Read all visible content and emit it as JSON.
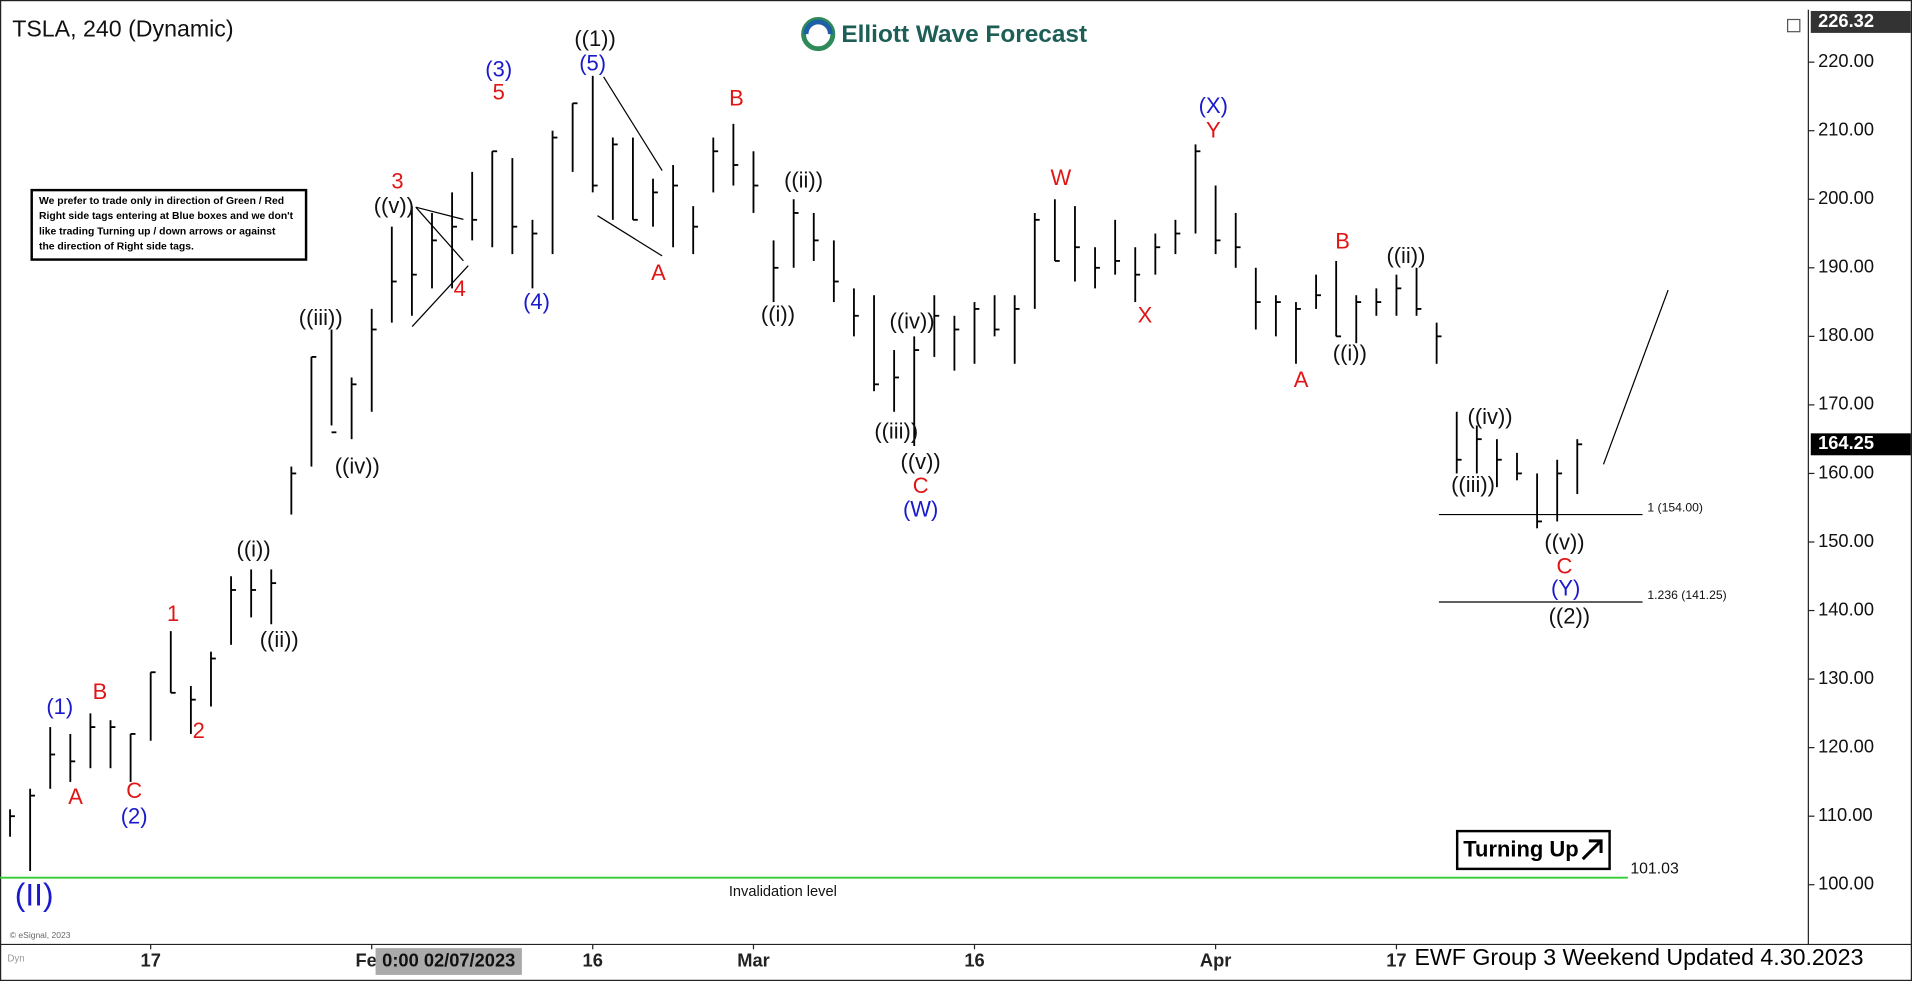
{
  "chart_data": {
    "type": "ohlc",
    "title": "TSLA, 240 (Dynamic)",
    "brand": "Elliott Wave Forecast",
    "footer": "EWF Group 3 Weekend Updated 4.30.2023",
    "source": "© eSignal, 2023",
    "corner_label": "Dyn",
    "cursor_label": "0:00 02/07/2023",
    "signal": "Turning Up",
    "note": [
      "We prefer to trade only in direction of Green / Red",
      "Right side tags entering at Blue boxes and we don't",
      "like trading Turning up / down arrows or against",
      "the direction of Right side tags."
    ],
    "price_high": 226.32,
    "last_price": 164.25,
    "invalidation": {
      "value": 101.03,
      "text": "Invalidation level",
      "color": "#33cc33"
    },
    "fib_levels": [
      {
        "value": 154,
        "label": "1 (154.00)"
      },
      {
        "value": 141.25,
        "label": "1.236 (141.25)"
      }
    ],
    "xlim": [
      1.5,
      91.5
    ],
    "xticks": [
      {
        "value": 9,
        "label": "17"
      },
      {
        "value": 20,
        "label": "Feb"
      },
      {
        "value": 31,
        "label": "16"
      },
      {
        "value": 39,
        "label": "Mar"
      },
      {
        "value": 50,
        "label": "16"
      },
      {
        "value": 62,
        "label": "Apr"
      },
      {
        "value": 71,
        "label": "17"
      }
    ],
    "ylim": [
      91.29,
      227.29
    ],
    "yticks": [
      {
        "value": 100,
        "label": "100.00"
      },
      {
        "value": 110,
        "label": "110.00"
      },
      {
        "value": 120,
        "label": "120.00"
      },
      {
        "value": 130,
        "label": "130.00"
      },
      {
        "value": 140,
        "label": "140.00"
      },
      {
        "value": 150,
        "label": "150.00"
      },
      {
        "value": 160,
        "label": "160.00"
      },
      {
        "value": 170,
        "label": "170.00"
      },
      {
        "value": 180,
        "label": "180.00"
      },
      {
        "value": 190,
        "label": "190.00"
      },
      {
        "value": 200,
        "label": "200.00"
      },
      {
        "value": 210,
        "label": "210.00"
      },
      {
        "value": 220,
        "label": "220.00"
      }
    ],
    "grid": false,
    "bar_color": "#000000",
    "x": [
      2,
      3,
      4,
      5,
      6,
      7,
      8,
      9,
      10,
      11,
      12,
      13,
      14,
      15,
      16,
      17,
      18,
      19,
      20,
      21,
      22,
      23,
      24,
      25,
      26,
      27,
      28,
      29,
      30,
      31,
      32,
      33,
      34,
      35,
      36,
      37,
      38,
      39,
      40,
      41,
      42,
      43,
      44,
      45,
      46,
      47,
      48,
      49,
      50,
      51,
      52,
      53,
      54,
      55,
      56,
      57,
      58,
      59,
      60,
      61,
      62,
      63,
      64,
      65,
      66,
      67,
      68,
      69,
      70,
      71,
      72,
      73,
      74,
      75,
      76,
      77,
      78,
      79,
      80
    ],
    "high": [
      111,
      114,
      123,
      122,
      125,
      124,
      122,
      131,
      137,
      129,
      134,
      145,
      146,
      146,
      161,
      177,
      181,
      174,
      184,
      196,
      199,
      198,
      201,
      204,
      207,
      206,
      197,
      210,
      214,
      218,
      209,
      209,
      203,
      205,
      199,
      209,
      211,
      207,
      194,
      200,
      198,
      194,
      187,
      186,
      178,
      180,
      186,
      183,
      185,
      186,
      186,
      198,
      200,
      199,
      193,
      197,
      193,
      195,
      197,
      208,
      202,
      198,
      190,
      186,
      185,
      189,
      191,
      186,
      187,
      189,
      190,
      182,
      169,
      167,
      165,
      163,
      160,
      162,
      165
    ],
    "low": [
      107,
      102,
      114,
      115,
      117,
      117,
      115,
      121,
      128,
      122,
      126,
      135,
      139,
      138,
      154,
      161,
      167,
      165,
      169,
      182,
      183,
      187,
      187,
      194,
      193,
      192,
      187,
      192,
      204,
      201,
      197,
      197,
      196,
      193,
      192,
      201,
      202,
      198,
      185,
      190,
      191,
      185,
      180,
      172,
      169,
      164,
      177,
      175,
      176,
      180,
      176,
      184,
      191,
      188,
      187,
      189,
      185,
      189,
      192,
      195,
      192,
      190,
      181,
      180,
      176,
      184,
      180,
      179,
      183,
      183,
      183,
      176,
      160,
      160,
      158,
      159,
      152,
      153,
      157
    ],
    "close": [
      110,
      113,
      119,
      118,
      123,
      123,
      122,
      131,
      128,
      127,
      133,
      143,
      143,
      144,
      160,
      177,
      166,
      173,
      181,
      188,
      189,
      194,
      196,
      197,
      207,
      196,
      195,
      209,
      214,
      202,
      208,
      197,
      201,
      202,
      196,
      207,
      205,
      202,
      190,
      198,
      194,
      188,
      183,
      173,
      174,
      178,
      183,
      181,
      184,
      181,
      184,
      197,
      191,
      193,
      190,
      191,
      189,
      193,
      195,
      207,
      194,
      193,
      185,
      185,
      184,
      186,
      180,
      185,
      185,
      187,
      184,
      180,
      162,
      165,
      162,
      160,
      153,
      160,
      164.25
    ],
    "wave_labels": [
      {
        "text": "(1)",
        "color": "#1a1acc"
      },
      {
        "text": "(2)",
        "color": "#1a1acc"
      },
      {
        "text": "(3)",
        "color": "#1a1acc"
      },
      {
        "text": "(5)",
        "color": "#1a1acc"
      },
      {
        "text": "(4)",
        "color": "#1a1acc"
      },
      {
        "text": "(W)",
        "color": "#1a1acc"
      },
      {
        "text": "(X)",
        "color": "#1a1acc"
      },
      {
        "text": "(Y)",
        "color": "#1a1acc"
      },
      {
        "text": "(II)",
        "color": "#1a1acc"
      },
      {
        "text": "((1))",
        "color": "#111111"
      },
      {
        "text": "((v))",
        "color": "#111111"
      },
      {
        "text": "((iii))",
        "color": "#111111"
      },
      {
        "text": "((iv))",
        "color": "#111111"
      },
      {
        "text": "((i))",
        "color": "#111111"
      },
      {
        "text": "((ii))",
        "color": "#111111"
      },
      {
        "text": "((ii))",
        "color": "#111111"
      },
      {
        "text": "((i))",
        "color": "#111111"
      },
      {
        "text": "((iv))",
        "color": "#111111"
      },
      {
        "text": "((iii))",
        "color": "#111111"
      },
      {
        "text": "((v))",
        "color": "#111111"
      },
      {
        "text": "((ii))",
        "color": "#111111"
      },
      {
        "text": "((i))",
        "color": "#111111"
      },
      {
        "text": "((iv))",
        "color": "#111111"
      },
      {
        "text": "((iii))",
        "color": "#111111"
      },
      {
        "text": "((v))",
        "color": "#111111"
      },
      {
        "text": "((2))",
        "color": "#111111"
      },
      {
        "text": "5",
        "color": "#e01515"
      },
      {
        "text": "3",
        "color": "#e01515"
      },
      {
        "text": "4",
        "color": "#e01515"
      },
      {
        "text": "1",
        "color": "#e01515"
      },
      {
        "text": "2",
        "color": "#e01515"
      },
      {
        "text": "A",
        "color": "#e01515"
      },
      {
        "text": "B",
        "color": "#e01515"
      },
      {
        "text": "C",
        "color": "#e01515"
      },
      {
        "text": "A",
        "color": "#e01515"
      },
      {
        "text": "B",
        "color": "#e01515"
      },
      {
        "text": "C",
        "color": "#e01515"
      },
      {
        "text": "W",
        "color": "#e01515"
      },
      {
        "text": "X",
        "color": "#e01515"
      },
      {
        "text": "Y",
        "color": "#e01515"
      },
      {
        "text": "A",
        "color": "#e01515"
      },
      {
        "text": "B",
        "color": "#e01515"
      },
      {
        "text": "C",
        "color": "#e01515"
      }
    ]
  }
}
